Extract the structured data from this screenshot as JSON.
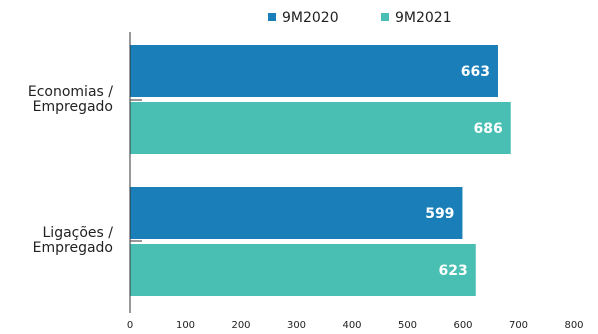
{
  "chart_data": {
    "type": "bar",
    "orientation": "horizontal",
    "categories": [
      [
        "Economias /",
        "Empregado"
      ],
      [
        "Ligações /",
        "Empregado"
      ]
    ],
    "series": [
      {
        "name": "9M2020",
        "color": "#1a7fb8",
        "values": [
          663,
          599
        ]
      },
      {
        "name": "9M2021",
        "color": "#49bfb3",
        "values": [
          686,
          623
        ]
      }
    ],
    "xlim": [
      0,
      800
    ],
    "xticks": [
      "0",
      "100",
      "200",
      "300",
      "400",
      "500",
      "600",
      "700",
      "800"
    ],
    "data_labels": [
      [
        "663",
        "599"
      ],
      [
        "686",
        "623"
      ]
    ],
    "legend_position": "top",
    "grid": false,
    "title": "",
    "xlabel": "",
    "ylabel": ""
  }
}
